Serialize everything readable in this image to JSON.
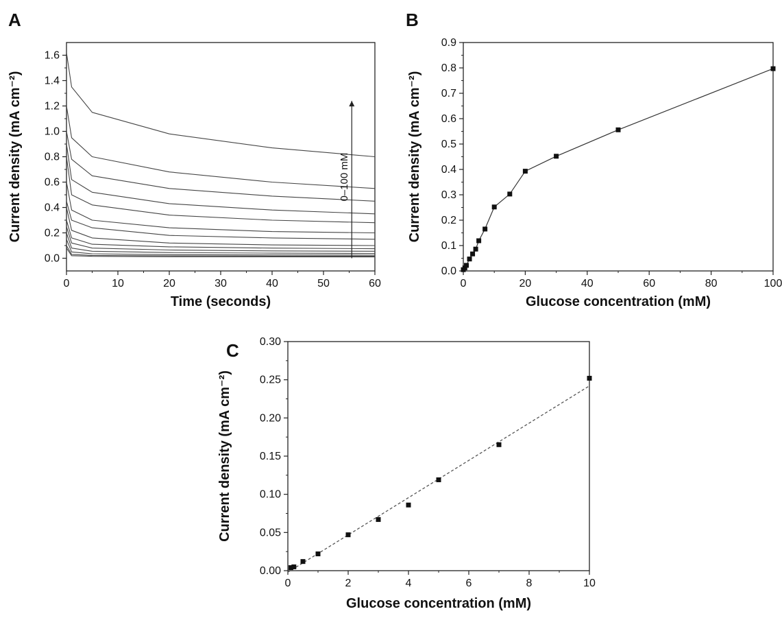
{
  "chart_data": [
    {
      "panel": "A",
      "type": "line",
      "xlabel": "Time (seconds)",
      "ylabel": "Current density (mA cm⁻²)",
      "xlim": [
        0,
        60
      ],
      "ylim": [
        -0.1,
        1.7
      ],
      "xticks": [
        "0",
        "10",
        "20",
        "30",
        "40",
        "50",
        "60"
      ],
      "yticks": [
        "0.0",
        "0.2",
        "0.4",
        "0.6",
        "0.8",
        "1.0",
        "1.2",
        "1.4",
        "1.6"
      ],
      "grid": false,
      "annotation": "0–100 mM",
      "series": [
        {
          "values": [
            [
              0,
              0.08
            ],
            [
              1,
              0.02
            ],
            [
              5,
              0.015
            ],
            [
              20,
              0.012
            ],
            [
              40,
              0.011
            ],
            [
              60,
              0.01
            ]
          ]
        },
        {
          "values": [
            [
              0,
              0.1
            ],
            [
              1,
              0.03
            ],
            [
              5,
              0.022
            ],
            [
              20,
              0.019
            ],
            [
              40,
              0.017
            ],
            [
              60,
              0.016
            ]
          ]
        },
        {
          "values": [
            [
              0,
              0.15
            ],
            [
              1,
              0.05
            ],
            [
              5,
              0.035
            ],
            [
              20,
              0.028
            ],
            [
              40,
              0.026
            ],
            [
              60,
              0.025
            ]
          ]
        },
        {
          "values": [
            [
              0,
              0.2
            ],
            [
              1,
              0.08
            ],
            [
              5,
              0.055
            ],
            [
              20,
              0.045
            ],
            [
              40,
              0.04
            ],
            [
              60,
              0.038
            ]
          ]
        },
        {
          "values": [
            [
              0,
              0.25
            ],
            [
              1,
              0.12
            ],
            [
              5,
              0.08
            ],
            [
              20,
              0.065
            ],
            [
              40,
              0.058
            ],
            [
              60,
              0.055
            ]
          ]
        },
        {
          "values": [
            [
              0,
              0.3
            ],
            [
              1,
              0.16
            ],
            [
              5,
              0.11
            ],
            [
              20,
              0.09
            ],
            [
              40,
              0.08
            ],
            [
              60,
              0.075
            ]
          ]
        },
        {
          "values": [
            [
              0,
              0.4
            ],
            [
              1,
              0.22
            ],
            [
              5,
              0.16
            ],
            [
              20,
              0.12
            ],
            [
              40,
              0.105
            ],
            [
              60,
              0.1
            ]
          ]
        },
        {
          "values": [
            [
              0,
              0.45
            ],
            [
              1,
              0.3
            ],
            [
              5,
              0.24
            ],
            [
              20,
              0.18
            ],
            [
              40,
              0.16
            ],
            [
              60,
              0.15
            ]
          ]
        },
        {
          "values": [
            [
              0,
              0.6
            ],
            [
              1,
              0.38
            ],
            [
              5,
              0.3
            ],
            [
              20,
              0.24
            ],
            [
              40,
              0.21
            ],
            [
              60,
              0.2
            ]
          ]
        },
        {
          "values": [
            [
              0,
              0.8
            ],
            [
              1,
              0.5
            ],
            [
              5,
              0.42
            ],
            [
              20,
              0.34
            ],
            [
              40,
              0.3
            ],
            [
              60,
              0.28
            ]
          ]
        },
        {
          "values": [
            [
              0,
              0.9
            ],
            [
              1,
              0.62
            ],
            [
              5,
              0.52
            ],
            [
              20,
              0.43
            ],
            [
              40,
              0.38
            ],
            [
              60,
              0.35
            ]
          ]
        },
        {
          "values": [
            [
              0,
              1.0
            ],
            [
              1,
              0.78
            ],
            [
              5,
              0.65
            ],
            [
              20,
              0.55
            ],
            [
              40,
              0.49
            ],
            [
              60,
              0.45
            ]
          ]
        },
        {
          "values": [
            [
              0,
              1.2
            ],
            [
              1,
              0.95
            ],
            [
              5,
              0.8
            ],
            [
              20,
              0.68
            ],
            [
              40,
              0.6
            ],
            [
              60,
              0.55
            ]
          ]
        },
        {
          "values": [
            [
              0,
              1.62
            ],
            [
              1,
              1.35
            ],
            [
              5,
              1.15
            ],
            [
              20,
              0.98
            ],
            [
              40,
              0.87
            ],
            [
              60,
              0.8
            ]
          ]
        }
      ]
    },
    {
      "panel": "B",
      "type": "line",
      "xlabel": "Glucose concentration (mM)",
      "ylabel": "Current density (mA cm⁻²)",
      "xlim": [
        0,
        100
      ],
      "ylim": [
        0,
        0.9
      ],
      "xticks": [
        "0",
        "20",
        "40",
        "60",
        "80",
        "100"
      ],
      "yticks": [
        "0.0",
        "0.1",
        "0.2",
        "0.3",
        "0.4",
        "0.5",
        "0.6",
        "0.7",
        "0.8",
        "0.9"
      ],
      "grid": false,
      "x": [
        0,
        0.5,
        1,
        2,
        3,
        4,
        5,
        7,
        10,
        15,
        20,
        30,
        50,
        100
      ],
      "y": [
        0.005,
        0.012,
        0.022,
        0.047,
        0.067,
        0.086,
        0.119,
        0.165,
        0.252,
        0.303,
        0.393,
        0.452,
        0.556,
        0.797
      ]
    },
    {
      "panel": "C",
      "type": "scatter",
      "xlabel": "Glucose concentration (mM)",
      "ylabel": "Current density (mA cm⁻²)",
      "xlim": [
        0,
        10
      ],
      "ylim": [
        0,
        0.3
      ],
      "xticks": [
        "0",
        "2",
        "4",
        "6",
        "8",
        "10"
      ],
      "yticks": [
        "0.00",
        "0.05",
        "0.10",
        "0.15",
        "0.20",
        "0.25",
        "0.30"
      ],
      "grid": false,
      "x": [
        0.1,
        0.2,
        0.5,
        1,
        2,
        3,
        4,
        5,
        7,
        10
      ],
      "y": [
        0.004,
        0.005,
        0.012,
        0.022,
        0.047,
        0.067,
        0.086,
        0.119,
        0.165,
        0.252
      ],
      "fit_line": {
        "x": [
          0,
          10
        ],
        "y": [
          -0.002,
          0.242
        ],
        "style": "dashed"
      }
    }
  ]
}
